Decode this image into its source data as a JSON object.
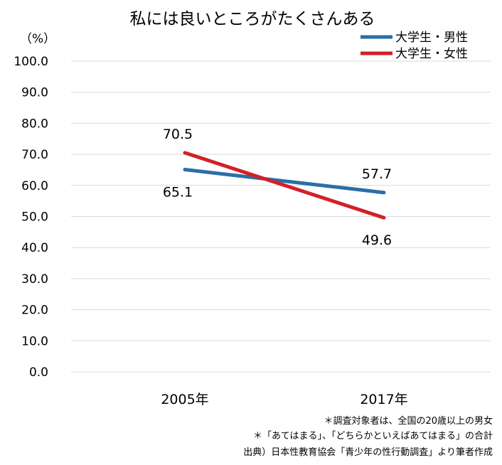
{
  "chart_data": {
    "type": "line",
    "title": "私には良いところがたくさんある",
    "ylabel": "（%）",
    "ylim": [
      0,
      100
    ],
    "yticks": [
      "0.0",
      "10.0",
      "20.0",
      "30.0",
      "40.0",
      "50.0",
      "60.0",
      "70.0",
      "80.0",
      "90.0",
      "100.0"
    ],
    "categories": [
      "2005年",
      "2017年"
    ],
    "series": [
      {
        "name": "大学生・男性",
        "color": "#2a6fa8",
        "values": [
          65.1,
          57.7
        ],
        "labels": [
          "65.1",
          "57.7"
        ]
      },
      {
        "name": "大学生・女性",
        "color": "#d32027",
        "values": [
          70.5,
          49.6
        ],
        "labels": [
          "70.5",
          "49.6"
        ]
      }
    ],
    "legend_position": "top-right",
    "grid": true
  },
  "notes": {
    "line1": "＊調査対象者は、全国の20歳以上の男女",
    "line2": "＊「あてはまる」、「どちらかといえばあてはまる」の合計",
    "source": "出典）日本性教育協会「青少年の性行動調査」より筆者作成"
  }
}
